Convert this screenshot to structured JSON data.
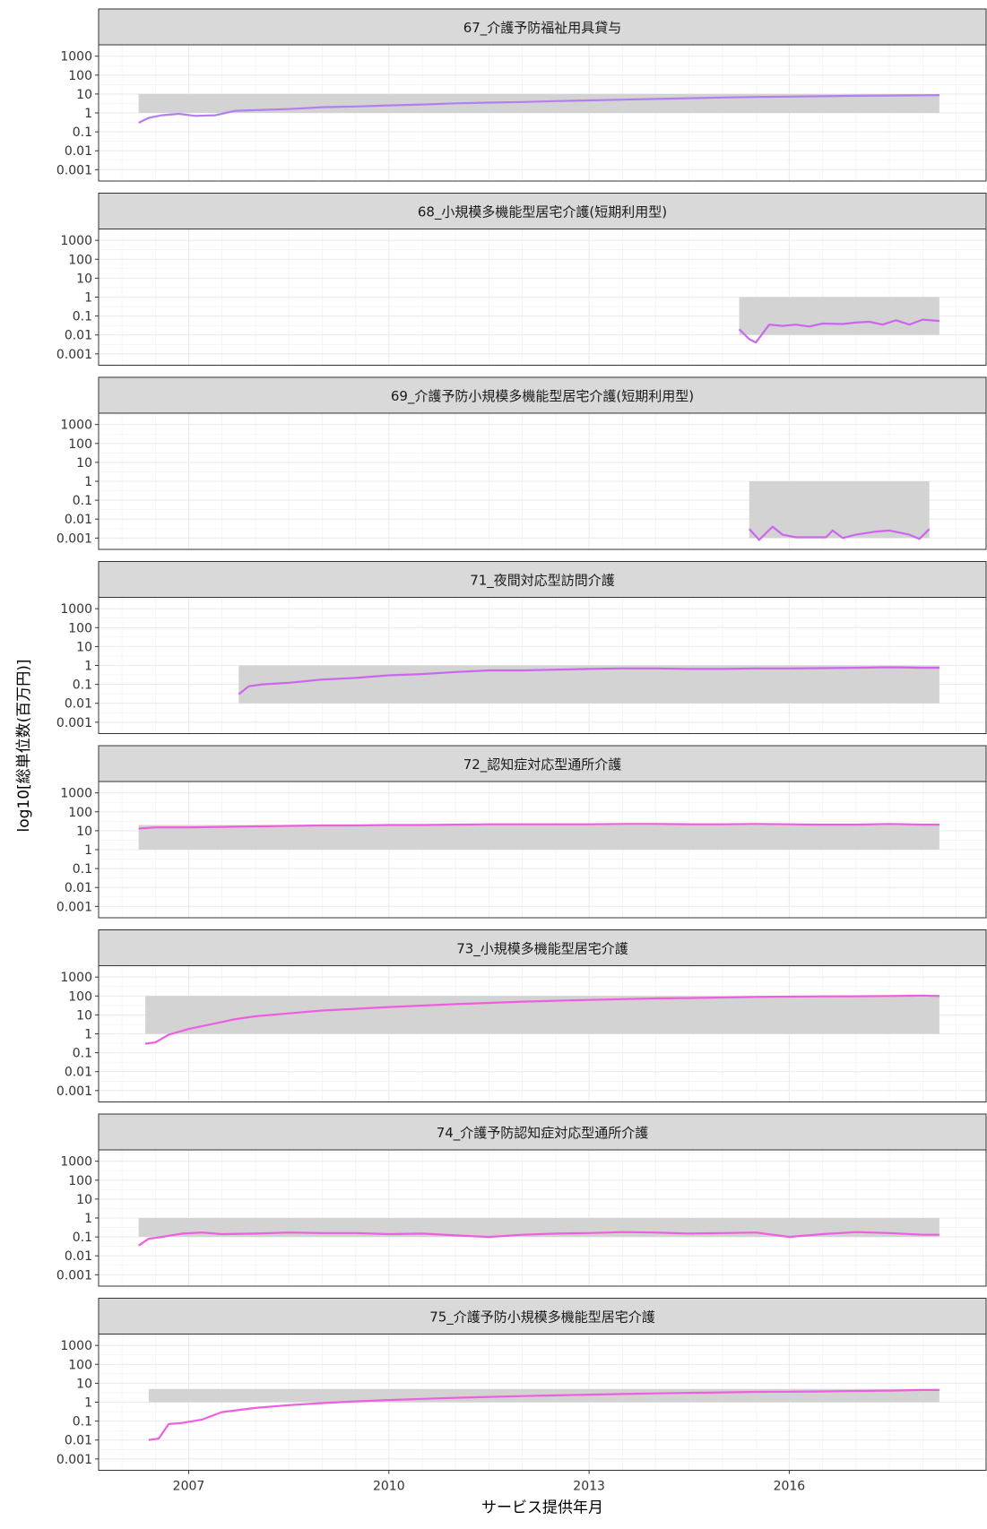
{
  "chart_data": {
    "type": "line",
    "xlabel": "サービス提供年月",
    "ylabel": "log10[総単位数(百万円)]",
    "x_ticks": [
      2007,
      2010,
      2013,
      2016
    ],
    "y_ticks": [
      "1000",
      "100",
      "10",
      "1",
      "0.1",
      "0.01",
      "0.001"
    ],
    "y_tick_values": [
      1000,
      100,
      10,
      1,
      0.1,
      0.01,
      0.001
    ],
    "x_range": [
      2005.65,
      2018.95
    ],
    "y_range_log10": [
      -3.6,
      3.6
    ],
    "grid": true,
    "colors": {
      "line_purple": "#b27ff0",
      "line_violet": "#cc66ee",
      "line_magenta": "#ee5fe0",
      "ribbon": "#d3d3d3",
      "strip_fill": "#d9d9d9"
    },
    "panels": [
      {
        "title": "67_介護予防福祉用具貸与",
        "color": "line_purple",
        "ribbon": {
          "x0": 2006.25,
          "x1": 2018.25,
          "ymin": 1,
          "ymax": 10
        },
        "series": [
          [
            2006.25,
            0.3
          ],
          [
            2006.4,
            0.55
          ],
          [
            2006.6,
            0.75
          ],
          [
            2006.85,
            0.9
          ],
          [
            2007.1,
            0.7
          ],
          [
            2007.4,
            0.75
          ],
          [
            2007.7,
            1.3
          ],
          [
            2008.0,
            1.4
          ],
          [
            2008.5,
            1.6
          ],
          [
            2009.0,
            2.0
          ],
          [
            2009.5,
            2.2
          ],
          [
            2010.0,
            2.5
          ],
          [
            2010.5,
            2.8
          ],
          [
            2011.0,
            3.2
          ],
          [
            2011.5,
            3.5
          ],
          [
            2012.0,
            3.8
          ],
          [
            2012.5,
            4.2
          ],
          [
            2013.0,
            4.6
          ],
          [
            2013.5,
            5.0
          ],
          [
            2014.0,
            5.5
          ],
          [
            2014.5,
            6.0
          ],
          [
            2015.0,
            6.5
          ],
          [
            2015.5,
            7.0
          ],
          [
            2016.0,
            7.3
          ],
          [
            2016.5,
            7.6
          ],
          [
            2017.0,
            8.0
          ],
          [
            2017.5,
            8.3
          ],
          [
            2018.0,
            8.6
          ],
          [
            2018.25,
            8.8
          ]
        ]
      },
      {
        "title": "68_小規模多機能型居宅介護(短期利用型)",
        "color": "line_violet",
        "ribbon": {
          "x0": 2015.25,
          "x1": 2018.25,
          "ymin": 0.01,
          "ymax": 1
        },
        "series": [
          [
            2015.25,
            0.02
          ],
          [
            2015.4,
            0.006
          ],
          [
            2015.5,
            0.004
          ],
          [
            2015.7,
            0.035
          ],
          [
            2015.9,
            0.03
          ],
          [
            2016.1,
            0.035
          ],
          [
            2016.3,
            0.028
          ],
          [
            2016.5,
            0.04
          ],
          [
            2016.8,
            0.038
          ],
          [
            2017.0,
            0.045
          ],
          [
            2017.2,
            0.05
          ],
          [
            2017.4,
            0.035
          ],
          [
            2017.6,
            0.06
          ],
          [
            2017.8,
            0.035
          ],
          [
            2018.0,
            0.065
          ],
          [
            2018.25,
            0.055
          ]
        ]
      },
      {
        "title": "69_介護予防小規模多機能型居宅介護(短期利用型)",
        "color": "line_violet",
        "ribbon": {
          "x0": 2015.4,
          "x1": 2018.1,
          "ymin": 0.001,
          "ymax": 1
        },
        "series": [
          [
            2015.4,
            0.003
          ],
          [
            2015.55,
            0.0008
          ],
          [
            2015.75,
            0.004
          ],
          [
            2015.9,
            0.0015
          ],
          [
            2016.1,
            0.0011
          ],
          [
            2016.3,
            0.0011
          ],
          [
            2016.55,
            0.0011
          ],
          [
            2016.65,
            0.0025
          ],
          [
            2016.8,
            0.001
          ],
          [
            2017.0,
            0.0015
          ],
          [
            2017.3,
            0.0022
          ],
          [
            2017.5,
            0.0025
          ],
          [
            2017.8,
            0.0015
          ],
          [
            2017.95,
            0.0009
          ],
          [
            2018.1,
            0.003
          ]
        ]
      },
      {
        "title": "71_夜間対応型訪問介護",
        "color": "line_violet",
        "ribbon": {
          "x0": 2007.75,
          "x1": 2018.25,
          "ymin": 0.01,
          "ymax": 1
        },
        "series": [
          [
            2007.75,
            0.03
          ],
          [
            2007.9,
            0.08
          ],
          [
            2008.1,
            0.1
          ],
          [
            2008.5,
            0.12
          ],
          [
            2009.0,
            0.18
          ],
          [
            2009.5,
            0.22
          ],
          [
            2010.0,
            0.3
          ],
          [
            2010.5,
            0.35
          ],
          [
            2011.0,
            0.45
          ],
          [
            2011.5,
            0.55
          ],
          [
            2012.0,
            0.55
          ],
          [
            2012.5,
            0.6
          ],
          [
            2013.0,
            0.65
          ],
          [
            2013.5,
            0.7
          ],
          [
            2014.0,
            0.7
          ],
          [
            2014.5,
            0.65
          ],
          [
            2015.0,
            0.65
          ],
          [
            2015.5,
            0.7
          ],
          [
            2016.0,
            0.7
          ],
          [
            2016.5,
            0.72
          ],
          [
            2017.0,
            0.75
          ],
          [
            2017.5,
            0.8
          ],
          [
            2018.0,
            0.75
          ],
          [
            2018.25,
            0.75
          ]
        ]
      },
      {
        "title": "72_認知症対応型通所介護",
        "color": "line_magenta",
        "ribbon": {
          "x0": 2006.25,
          "x1": 2018.25,
          "ymin": 1,
          "ymax": 20
        },
        "series": [
          [
            2006.25,
            13
          ],
          [
            2006.5,
            15
          ],
          [
            2007.0,
            15
          ],
          [
            2007.5,
            16
          ],
          [
            2008.0,
            17
          ],
          [
            2008.5,
            18
          ],
          [
            2009.0,
            19
          ],
          [
            2009.5,
            19
          ],
          [
            2010.0,
            20
          ],
          [
            2010.5,
            20
          ],
          [
            2011.0,
            21
          ],
          [
            2011.5,
            22
          ],
          [
            2012.0,
            22
          ],
          [
            2012.5,
            22
          ],
          [
            2013.0,
            22
          ],
          [
            2013.5,
            23
          ],
          [
            2014.0,
            23
          ],
          [
            2014.5,
            22
          ],
          [
            2015.0,
            22
          ],
          [
            2015.5,
            23
          ],
          [
            2016.0,
            22
          ],
          [
            2016.5,
            21
          ],
          [
            2017.0,
            21
          ],
          [
            2017.5,
            23
          ],
          [
            2018.0,
            21
          ],
          [
            2018.25,
            21
          ]
        ]
      },
      {
        "title": "73_小規模多機能型居宅介護",
        "color": "line_magenta",
        "ribbon": {
          "x0": 2006.35,
          "x1": 2018.25,
          "ymin": 1,
          "ymax": 100
        },
        "series": [
          [
            2006.35,
            0.3
          ],
          [
            2006.5,
            0.35
          ],
          [
            2006.7,
            0.9
          ],
          [
            2007.0,
            1.8
          ],
          [
            2007.3,
            3.0
          ],
          [
            2007.7,
            6
          ],
          [
            2008.0,
            8.5
          ],
          [
            2008.5,
            12
          ],
          [
            2009.0,
            17
          ],
          [
            2009.5,
            21
          ],
          [
            2010.0,
            26
          ],
          [
            2010.5,
            31
          ],
          [
            2011.0,
            37
          ],
          [
            2011.5,
            43
          ],
          [
            2012.0,
            50
          ],
          [
            2012.5,
            56
          ],
          [
            2013.0,
            62
          ],
          [
            2013.5,
            68
          ],
          [
            2014.0,
            74
          ],
          [
            2014.5,
            78
          ],
          [
            2015.0,
            83
          ],
          [
            2015.5,
            88
          ],
          [
            2016.0,
            92
          ],
          [
            2016.5,
            95
          ],
          [
            2017.0,
            97
          ],
          [
            2017.5,
            100
          ],
          [
            2018.0,
            105
          ],
          [
            2018.25,
            100
          ]
        ]
      },
      {
        "title": "74_介護予防認知症対応型通所介護",
        "color": "line_magenta",
        "ribbon": {
          "x0": 2006.25,
          "x1": 2018.25,
          "ymin": 0.1,
          "ymax": 1
        },
        "series": [
          [
            2006.25,
            0.035
          ],
          [
            2006.4,
            0.08
          ],
          [
            2006.6,
            0.1
          ],
          [
            2006.9,
            0.15
          ],
          [
            2007.2,
            0.17
          ],
          [
            2007.5,
            0.14
          ],
          [
            2008.0,
            0.15
          ],
          [
            2008.5,
            0.17
          ],
          [
            2009.0,
            0.16
          ],
          [
            2009.5,
            0.16
          ],
          [
            2010.0,
            0.14
          ],
          [
            2010.5,
            0.15
          ],
          [
            2011.0,
            0.12
          ],
          [
            2011.5,
            0.1
          ],
          [
            2012.0,
            0.13
          ],
          [
            2012.5,
            0.15
          ],
          [
            2013.0,
            0.16
          ],
          [
            2013.5,
            0.18
          ],
          [
            2014.0,
            0.17
          ],
          [
            2014.5,
            0.15
          ],
          [
            2015.0,
            0.16
          ],
          [
            2015.5,
            0.17
          ],
          [
            2016.0,
            0.1
          ],
          [
            2016.5,
            0.14
          ],
          [
            2017.0,
            0.18
          ],
          [
            2017.5,
            0.16
          ],
          [
            2018.0,
            0.13
          ],
          [
            2018.25,
            0.13
          ]
        ]
      },
      {
        "title": "75_介護予防小規模多機能型居宅介護",
        "color": "line_magenta",
        "ribbon": {
          "x0": 2006.4,
          "x1": 2018.25,
          "ymin": 1,
          "ymax": 5
        },
        "series": [
          [
            2006.4,
            0.01
          ],
          [
            2006.55,
            0.012
          ],
          [
            2006.7,
            0.07
          ],
          [
            2006.9,
            0.08
          ],
          [
            2007.2,
            0.12
          ],
          [
            2007.5,
            0.3
          ],
          [
            2008.0,
            0.5
          ],
          [
            2008.5,
            0.7
          ],
          [
            2009.0,
            0.9
          ],
          [
            2009.5,
            1.1
          ],
          [
            2010.0,
            1.3
          ],
          [
            2010.5,
            1.5
          ],
          [
            2011.0,
            1.7
          ],
          [
            2011.5,
            1.9
          ],
          [
            2012.0,
            2.1
          ],
          [
            2012.5,
            2.3
          ],
          [
            2013.0,
            2.5
          ],
          [
            2013.5,
            2.7
          ],
          [
            2014.0,
            2.9
          ],
          [
            2014.5,
            3.1
          ],
          [
            2015.0,
            3.3
          ],
          [
            2015.5,
            3.5
          ],
          [
            2016.0,
            3.6
          ],
          [
            2016.5,
            3.7
          ],
          [
            2017.0,
            3.9
          ],
          [
            2017.5,
            4.1
          ],
          [
            2018.0,
            4.4
          ],
          [
            2018.25,
            4.4
          ]
        ]
      }
    ]
  }
}
